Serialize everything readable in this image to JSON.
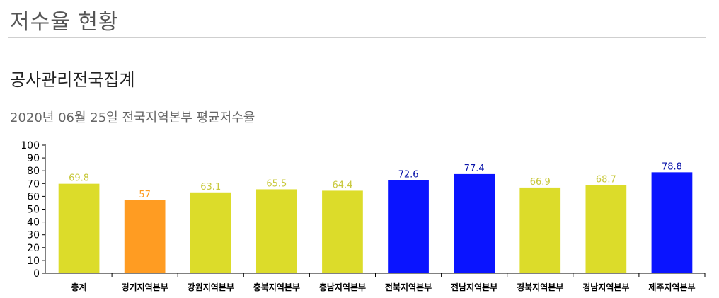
{
  "page": {
    "title": "저수율 현황",
    "section_title": "공사관리전국집계"
  },
  "chart_data": {
    "type": "bar",
    "title": "2020년 06월 25일 전국지역본부 평균저수율",
    "xlabel": "",
    "ylabel": "",
    "ylim": [
      0,
      100
    ],
    "yticks": [
      0,
      10,
      20,
      30,
      40,
      50,
      60,
      70,
      80,
      90,
      100
    ],
    "grid": false,
    "categories": [
      "총계",
      "경기지역본부",
      "강원지역본부",
      "충북지역본부",
      "충남지역본부",
      "전북지역본부",
      "전남지역본부",
      "경북지역본부",
      "경남지역본부",
      "제주지역본부"
    ],
    "values": [
      69.8,
      57,
      63.1,
      65.5,
      64.4,
      72.6,
      77.4,
      66.9,
      68.7,
      78.8
    ],
    "value_labels": [
      "69.8",
      "57",
      "63.1",
      "65.5",
      "64.4",
      "72.6",
      "77.4",
      "66.9",
      "68.7",
      "78.8"
    ],
    "bar_colors": [
      "#dcdc2a",
      "#ff9c22",
      "#dcdc2a",
      "#dcdc2a",
      "#dcdc2a",
      "#0a14ff",
      "#0a14ff",
      "#dcdc2a",
      "#dcdc2a",
      "#0a14ff"
    ],
    "label_colors": [
      "#c8c83c",
      "#ff9c22",
      "#c8c83c",
      "#c8c83c",
      "#c8c83c",
      "#0a14aa",
      "#0a14aa",
      "#c8c83c",
      "#c8c83c",
      "#0a14aa"
    ]
  }
}
